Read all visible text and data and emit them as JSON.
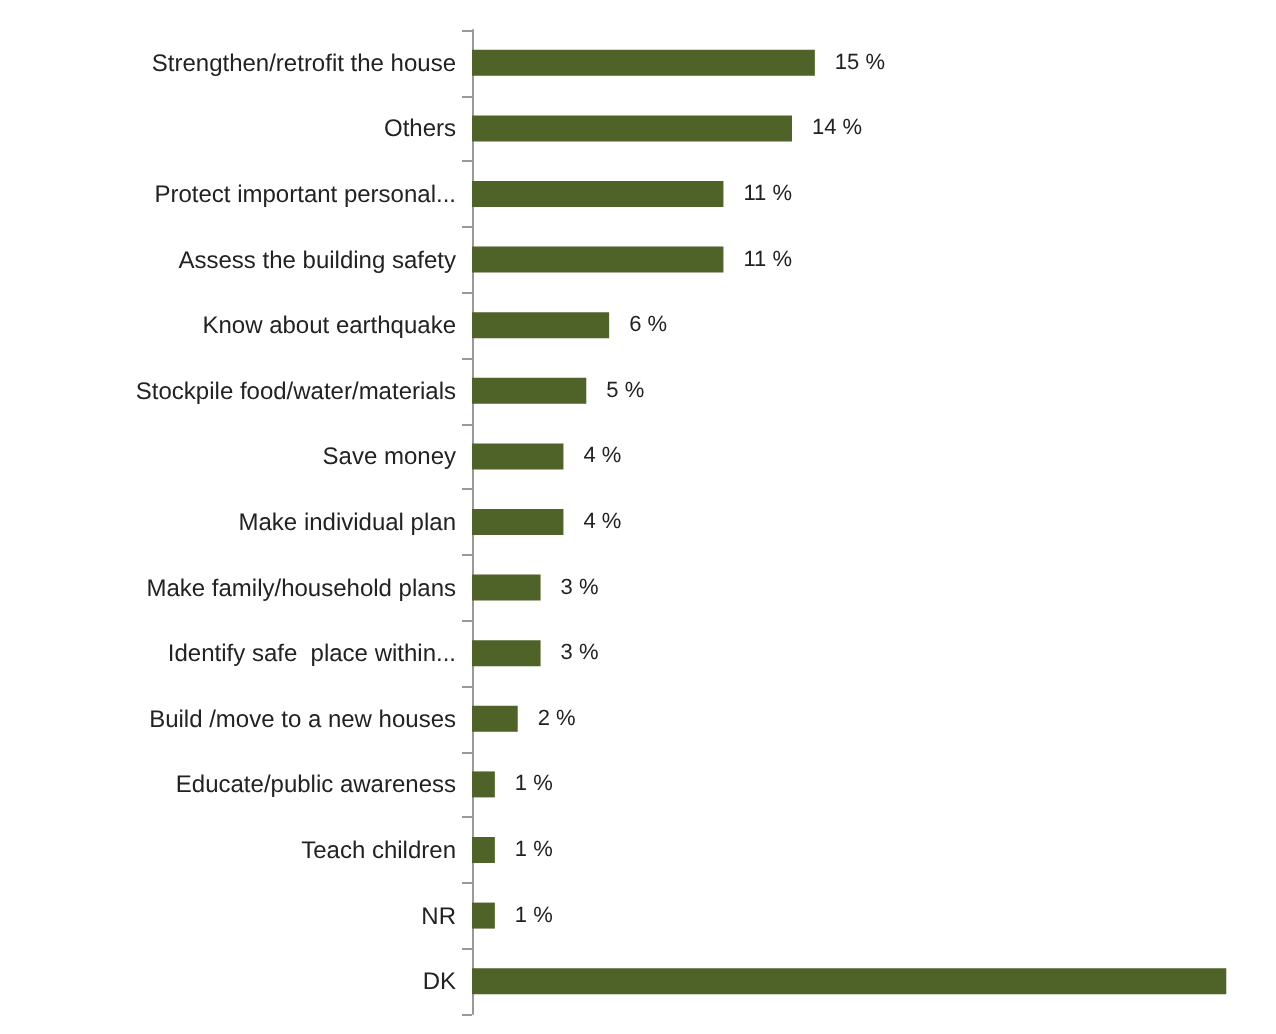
{
  "chart_data": {
    "type": "bar",
    "orientation": "horizontal",
    "categories": [
      "Strengthen/retrofit the house",
      "Others",
      "Protect important personal...",
      "Assess the building safety",
      "Know about earthquake",
      "Stockpile food/water/materials",
      "Save money",
      "Make individual plan",
      "Make family/household plans",
      "Identify safe  place within...",
      "Build /move to a new houses",
      "Educate/public awareness",
      "Teach children",
      "NR",
      "DK"
    ],
    "values": [
      15,
      14,
      11,
      11,
      6,
      5,
      4,
      4,
      3,
      3,
      2,
      1,
      1,
      1,
      33
    ],
    "value_labels": [
      "15 %",
      "14 %",
      "11 %",
      "11 %",
      "6 %",
      "5 %",
      "4 %",
      "4 %",
      "3 %",
      "3 %",
      "2 %",
      "1 %",
      "1 %",
      "1 %",
      null
    ],
    "color": "#4f6228"
  }
}
